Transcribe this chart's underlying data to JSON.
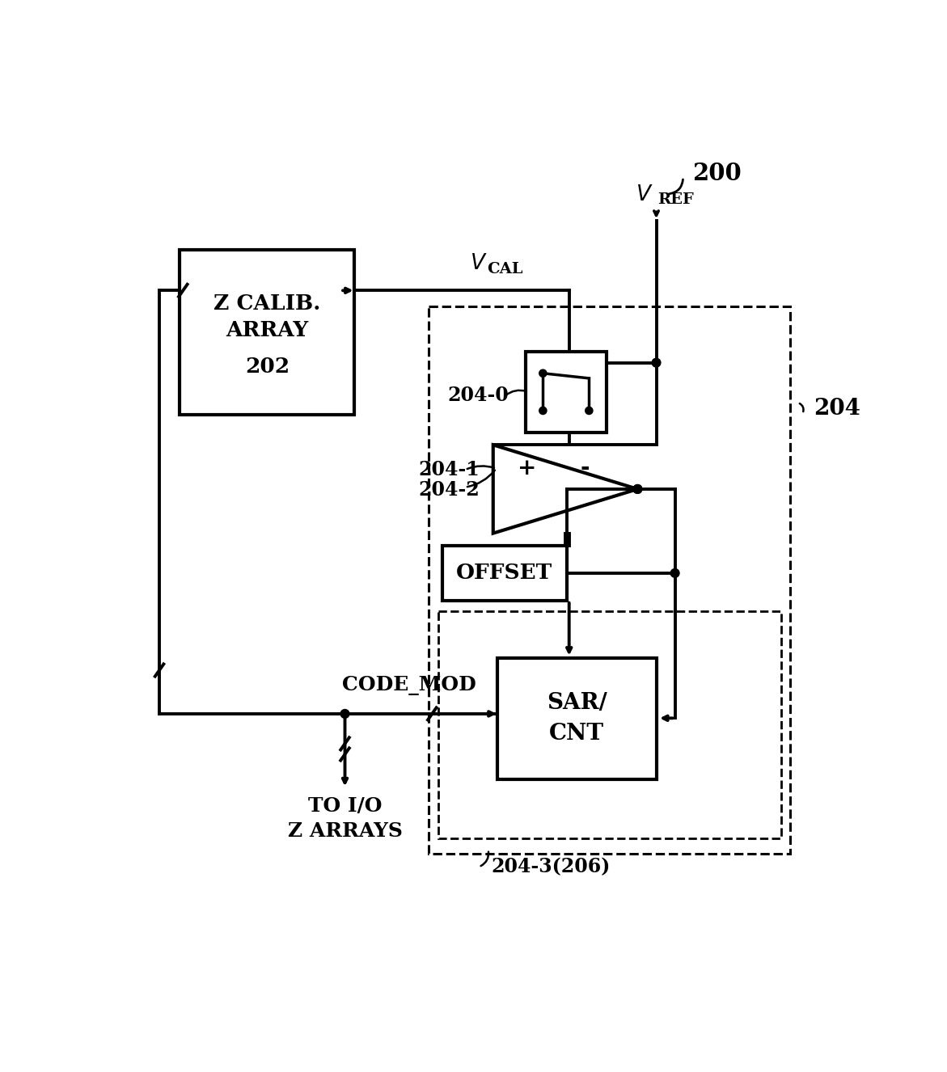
{
  "bg_color": "#ffffff",
  "line_color": "#000000",
  "fig_w": 1171,
  "fig_h": 1326,
  "label_200": "200",
  "label_vcal": "V",
  "label_vcal_sub": "CAL",
  "label_vref": "V",
  "label_vref_sub": "REF",
  "label_202": "202",
  "label_z_calib": "Z CALIB.\nARRAY",
  "label_204_0": "204-0",
  "label_204_1": "204-1",
  "label_204_2": "204-2",
  "label_204_3": "204-3(206)",
  "label_204": "204",
  "label_offset": "OFFSET",
  "label_sar": "SAR/\nCNT",
  "label_code_mod": "CODE_MOD",
  "label_to_io": "TO I/O\nZ ARRAYS",
  "label_plus": "+",
  "label_minus": "-"
}
